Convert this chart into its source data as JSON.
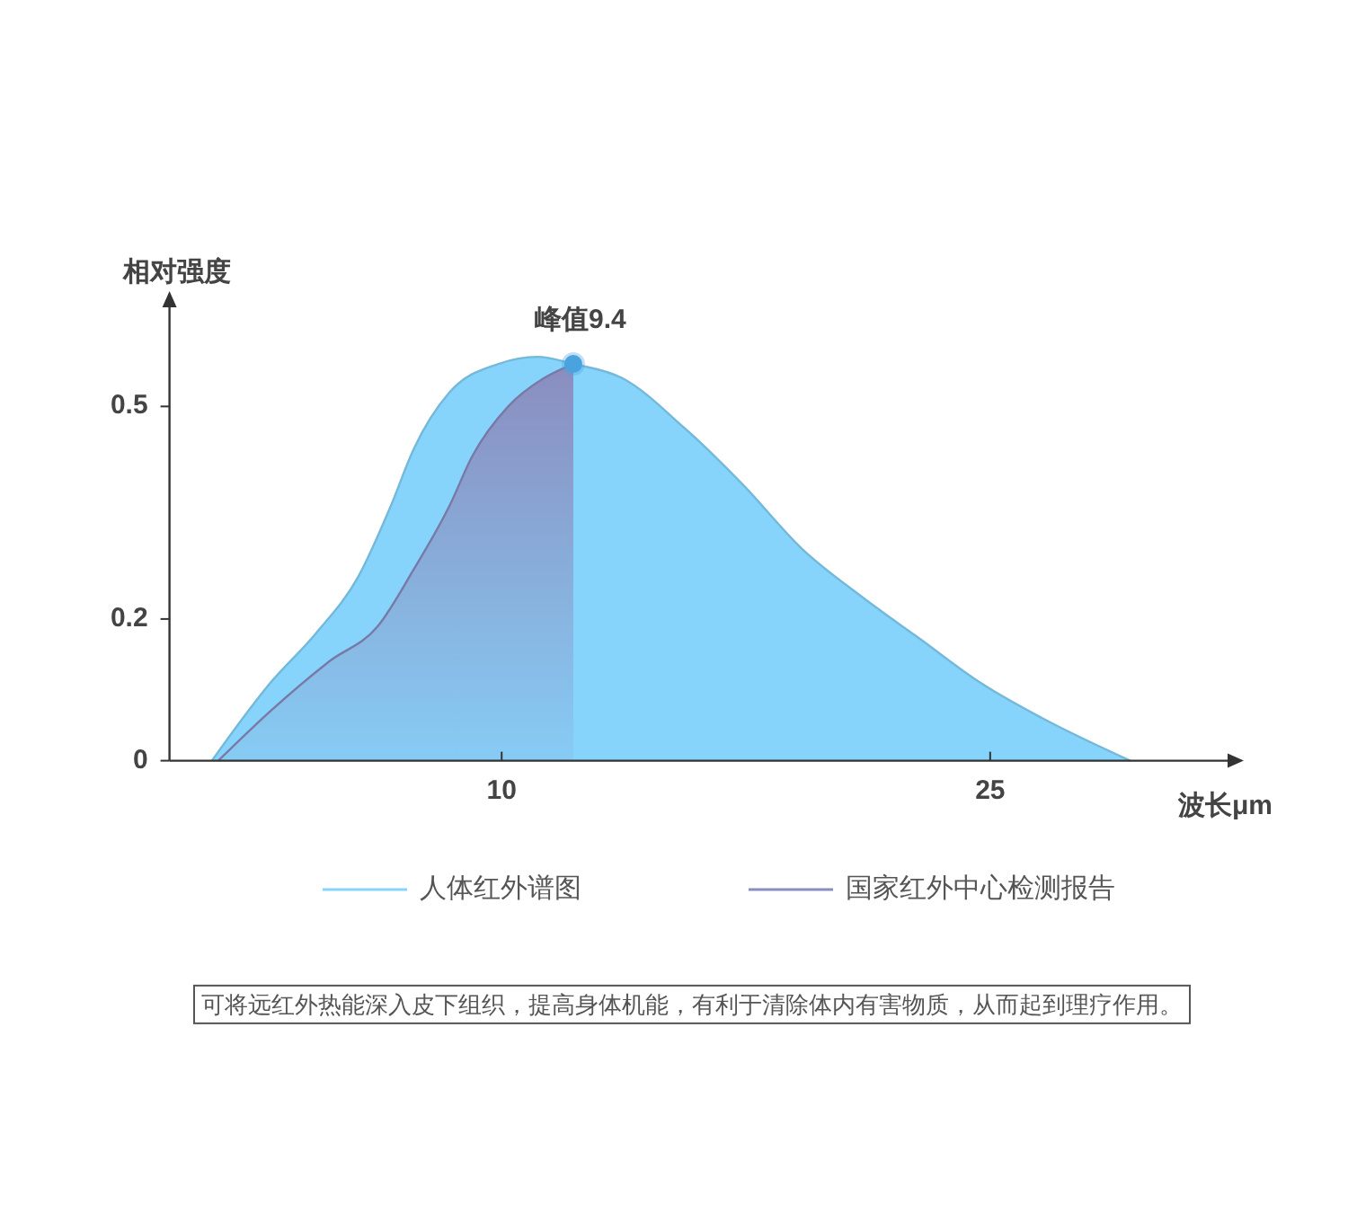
{
  "chart_data": {
    "type": "area",
    "xlabel": "波长μm",
    "ylabel": "相对强度",
    "xlim": [
      -0.2,
      32.4
    ],
    "ylim": [
      0,
      0.645
    ],
    "xticks": [
      10,
      25
    ],
    "yticks": [
      0,
      0.2,
      0.5
    ],
    "legend": "bottom",
    "series": [
      {
        "name": "人体红外谱图",
        "color": "#86d4fb",
        "x": [
          1.1,
          2.9,
          4.3,
          5.6,
          6.6,
          7.3,
          8.4,
          9.9,
          11.1,
          12.2,
          13.7,
          15.6,
          17.4,
          19.2,
          21.1,
          22.9,
          24.7,
          26.6,
          29.3
        ],
        "values": [
          0,
          0.11,
          0.18,
          0.26,
          0.36,
          0.44,
          0.52,
          0.56,
          0.57,
          0.56,
          0.54,
          0.47,
          0.39,
          0.3,
          0.23,
          0.17,
          0.11,
          0.06,
          0
        ]
      },
      {
        "name": "国家红外中心检测报告",
        "color": "#8a8dbf",
        "x": [
          1.3,
          2.9,
          4.7,
          6.2,
          7.3,
          8.4,
          9.1,
          10.2,
          11.3,
          12.2
        ],
        "values": [
          0,
          0.07,
          0.14,
          0.19,
          0.27,
          0.36,
          0.43,
          0.5,
          0.54,
          0.56
        ]
      },
      {
        "type": "scatter",
        "color": "#4aa3df",
        "marker": "circle",
        "x": [
          12.2
        ],
        "values": [
          0.56
        ]
      }
    ],
    "annotations": [
      {
        "text": "峰值9.4",
        "x": 12.2,
        "y": 0.56
      },
      "可将远红外热能深入皮下组织，提高身体机能，有利于清除体内有害物质，从而起到理疗作用。"
    ]
  }
}
